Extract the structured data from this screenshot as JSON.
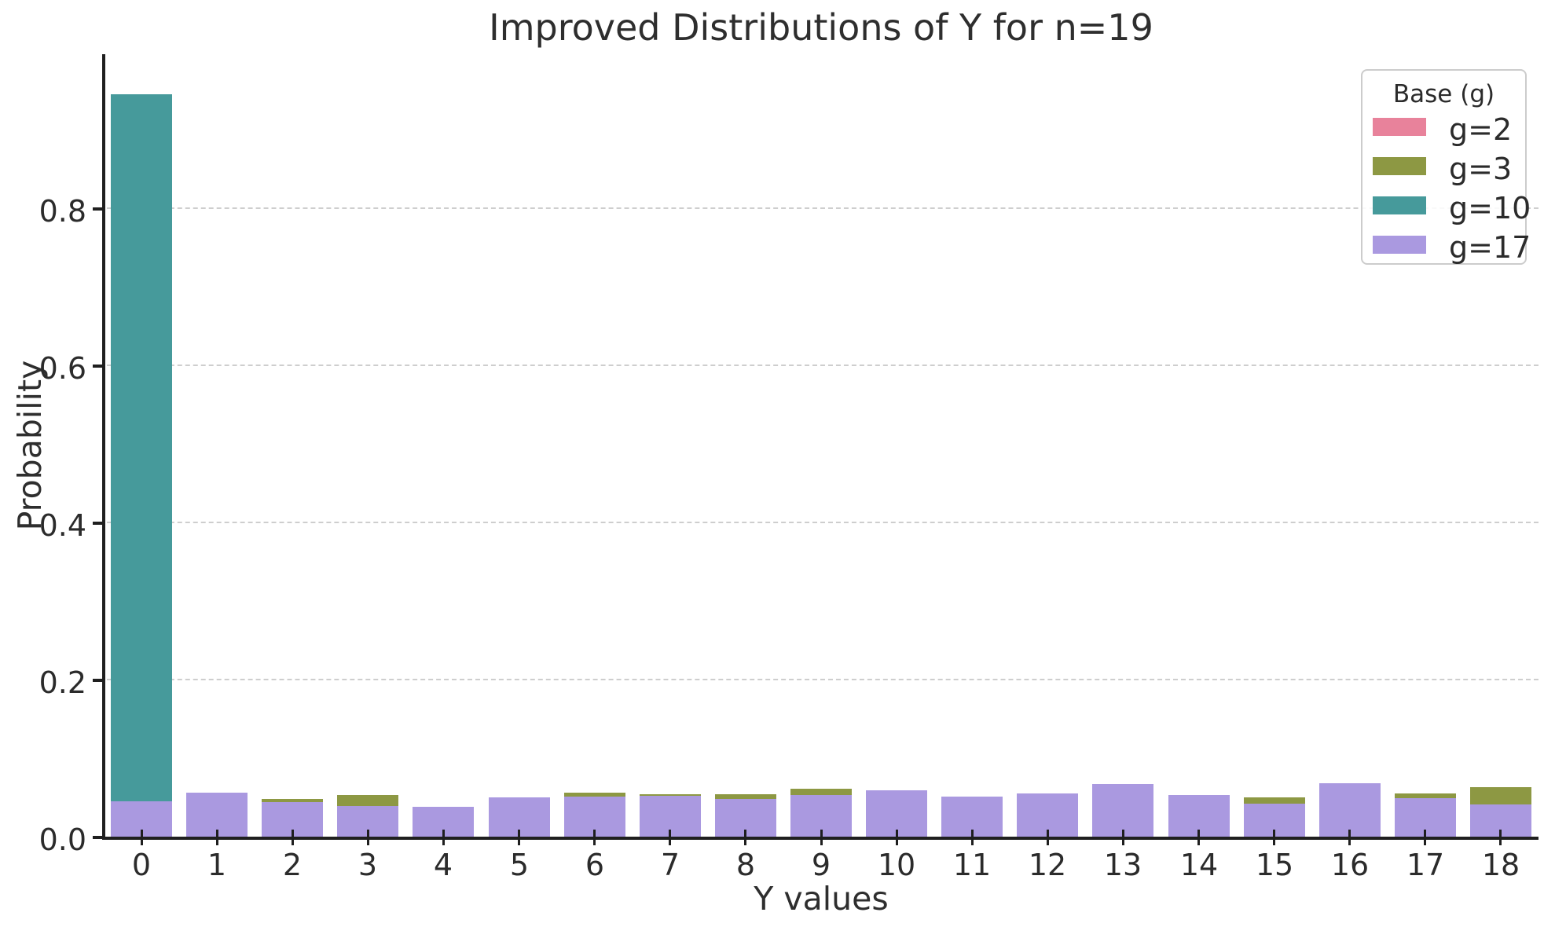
{
  "chart_data": {
    "type": "bar",
    "mode": "overlay",
    "title": "Improved Distributions of Y for n=19",
    "xlabel": "Y values",
    "ylabel": "Probability",
    "categories": [
      0,
      1,
      2,
      3,
      4,
      5,
      6,
      7,
      8,
      9,
      10,
      11,
      12,
      13,
      14,
      15,
      16,
      17,
      18
    ],
    "x_tick_labels": [
      "0",
      "1",
      "2",
      "3",
      "4",
      "5",
      "6",
      "7",
      "8",
      "9",
      "10",
      "11",
      "12",
      "13",
      "14",
      "15",
      "16",
      "17",
      "18"
    ],
    "y_tick_labels": [
      "0.0",
      "0.2",
      "0.4",
      "0.6",
      "0.8"
    ],
    "y_tick_values": [
      0.0,
      0.2,
      0.4,
      0.6,
      0.8
    ],
    "ylim": [
      0,
      0.996
    ],
    "grid": {
      "axis": "y",
      "style": "dashed",
      "color": "#cecece"
    },
    "text_color": "#2b2b2b",
    "spine_color": "#1f1f1f",
    "legend": {
      "title": "Base (g)",
      "position": "upper right",
      "entries": [
        {
          "label": "g=2",
          "color": "#e8829b"
        },
        {
          "label": "g=3",
          "color": "#8d9843"
        },
        {
          "label": "g=10",
          "color": "#469a9b"
        },
        {
          "label": "g=17",
          "color": "#aa99e0"
        }
      ]
    },
    "series": [
      {
        "name": "g=2",
        "color": "#e8829b",
        "values": [
          null,
          null,
          null,
          null,
          null,
          null,
          null,
          null,
          null,
          null,
          null,
          null,
          null,
          null,
          null,
          null,
          null,
          null,
          null
        ],
        "note": "bars fully occluded by later-drawn series; only visible in legend"
      },
      {
        "name": "g=3",
        "color": "#8d9843",
        "values": [
          null,
          null,
          0.048,
          0.053,
          null,
          null,
          0.056,
          0.054,
          0.054,
          0.061,
          null,
          null,
          null,
          null,
          null,
          0.05,
          null,
          0.055,
          0.063
        ]
      },
      {
        "name": "g=10",
        "color": "#469a9b",
        "values": [
          0.945,
          null,
          null,
          null,
          null,
          null,
          null,
          null,
          null,
          null,
          null,
          null,
          null,
          null,
          null,
          null,
          null,
          null,
          null
        ]
      },
      {
        "name": "g=17",
        "color": "#aa99e0",
        "values": [
          0.045,
          0.056,
          0.044,
          0.039,
          0.038,
          0.05,
          0.051,
          0.052,
          0.048,
          0.053,
          0.059,
          0.051,
          0.055,
          0.067,
          0.053,
          0.042,
          0.068,
          0.049,
          0.041
        ]
      }
    ]
  }
}
